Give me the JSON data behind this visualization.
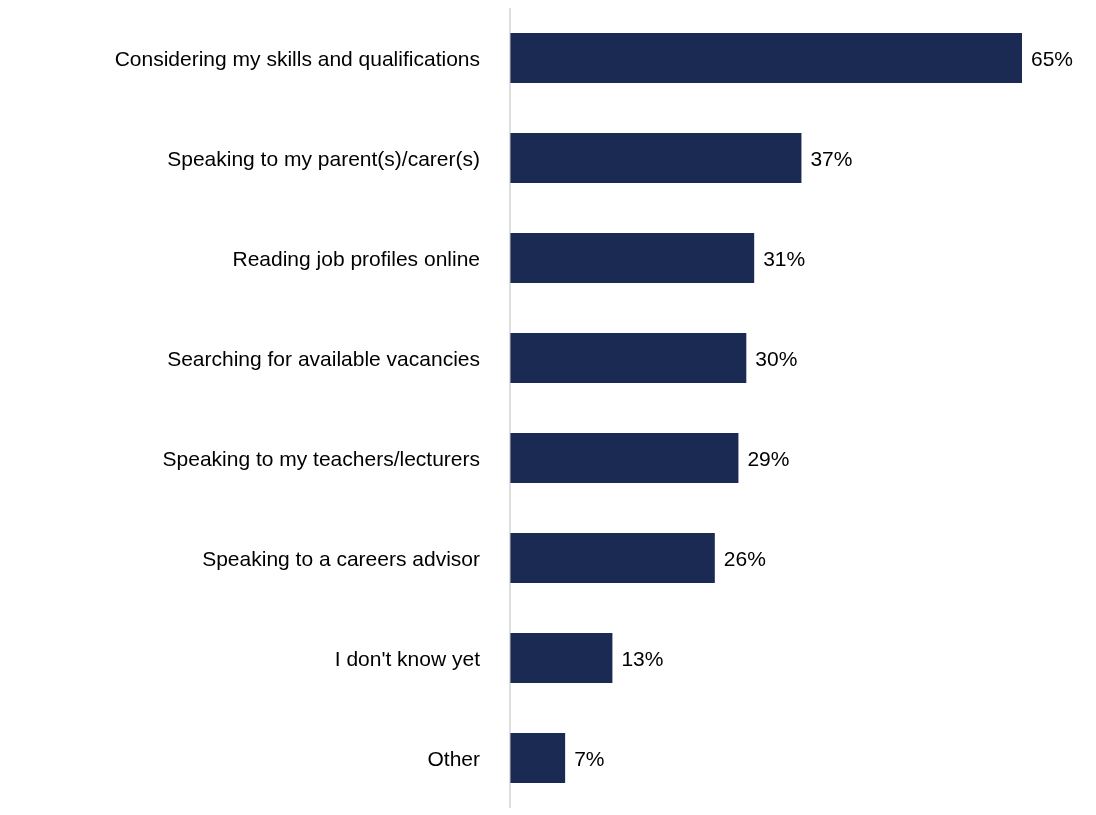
{
  "chart_data": {
    "type": "bar",
    "orientation": "horizontal",
    "categories": [
      "Considering my skills and qualifications",
      "Speaking to my parent(s)/carer(s)",
      "Reading job profiles online",
      "Searching for available vacancies",
      "Speaking to my teachers/lecturers",
      "Speaking to a careers advisor",
      "I don't know yet",
      "Other"
    ],
    "values": [
      65,
      37,
      31,
      30,
      29,
      26,
      13,
      7
    ],
    "value_labels": [
      "65%",
      "37%",
      "31%",
      "30%",
      "29%",
      "26%",
      "13%",
      "7%"
    ],
    "color": "#1b2a52"
  }
}
